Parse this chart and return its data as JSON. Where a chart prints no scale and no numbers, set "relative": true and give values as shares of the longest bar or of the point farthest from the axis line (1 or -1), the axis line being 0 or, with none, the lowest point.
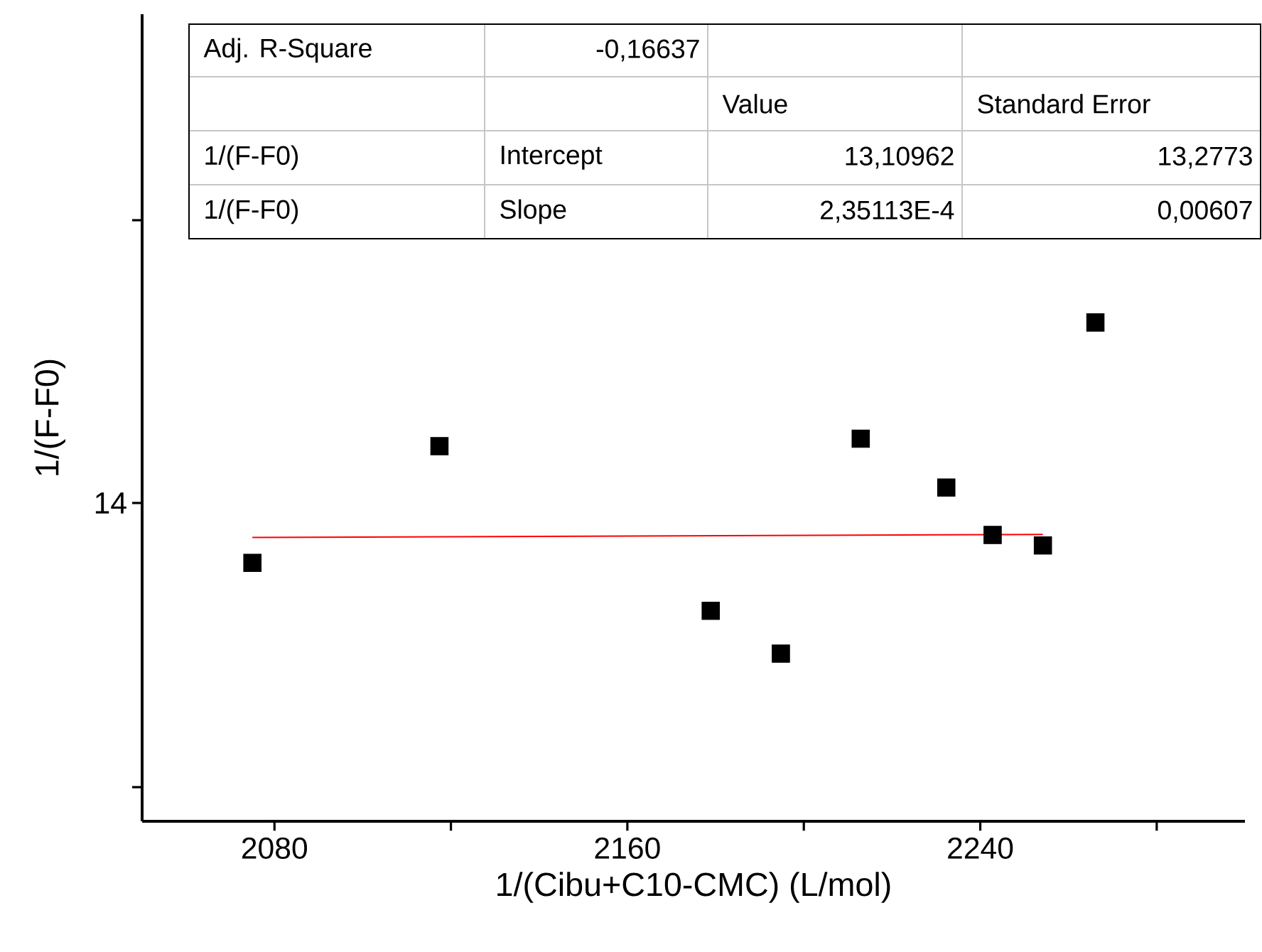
{
  "chart_data": {
    "type": "scatter",
    "xlabel": "1/(Cibu+C10-CMC) (L/mol)",
    "ylabel": "1/(F-F0)",
    "relative": true,
    "xlim": [
      2050,
      2300
    ],
    "xticks": [
      2080,
      {
        "value": 2120,
        "label": null
      },
      2160,
      {
        "value": 2200,
        "label": null
      },
      2240,
      {
        "value": 2280,
        "label": null
      }
    ],
    "marker": "square",
    "annotations": [
      "Adj. R-Square",
      "-0,16637",
      "Value",
      "Standard Error",
      "1/(F-F0)",
      "Intercept",
      "13,10962",
      "13,2773",
      "1/(F-F0)",
      "Slope",
      "2,35113E-4",
      "0,00607",
      "14"
    ],
    "series": [
      {
        "color": "#000000",
        "x": [
          2075.0,
          2117.4,
          2178.9,
          2194.8,
          2212.9,
          2232.3,
          2242.8,
          2254.2,
          2266.1
        ],
        "values": [
          0.518,
          0.752,
          0.422,
          0.336,
          0.767,
          0.669,
          0.574,
          0.553,
          1.0
        ]
      },
      {
        "type": "line",
        "color": "#ff0000",
        "marker": "none",
        "x": [
          2075.0,
          2254.2
        ],
        "values": [
          0.569,
          0.575
        ]
      }
    ]
  }
}
